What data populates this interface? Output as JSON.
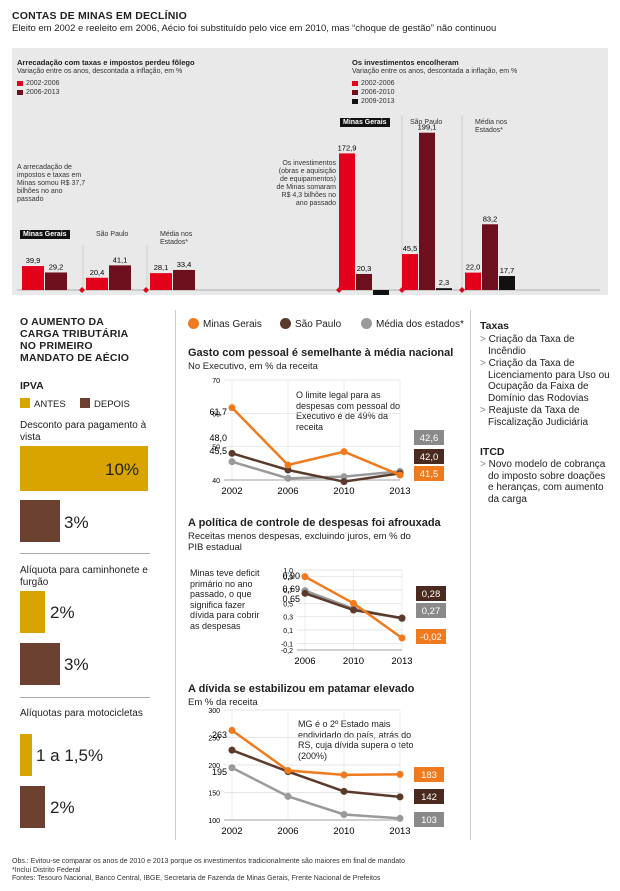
{
  "header": {
    "title": "CONTAS DE MINAS EM DECLÍNIO",
    "subtitle": "Eleito em 2002 e reeleito em 2006, Aécio foi substituído pelo vice em 2010, mas “choque de gestão” não continuou"
  },
  "colors": {
    "red": "#e3001b",
    "darkred": "#6e0f1e",
    "maroon": "#3a0d12",
    "black": "#111111",
    "orange": "#f07b1f",
    "brown": "#5a3a2a",
    "gray": "#9a9a9a",
    "gold": "#d9a400",
    "chocolate": "#6b4030"
  },
  "top_left": {
    "title": "Arrecadação com taxas e impostos perdeu fôlego",
    "subtitle": "Variação entre os anos, descontada a inflação, em %",
    "legend": [
      "2002-2006",
      "2006-2013"
    ],
    "annotation": "A arrecadação de impostos e taxas em Minas somou R$ 37,7 bilhões no ano passado",
    "groups": [
      {
        "label": "Minas Gerais",
        "tag": true,
        "values": [
          "39,9",
          "29,2"
        ]
      },
      {
        "label": "São Paulo",
        "tag": false,
        "values": [
          "20,4",
          "41,1"
        ]
      },
      {
        "label": "Média nos Estados*",
        "tag": false,
        "values": [
          "28,1",
          "33,4"
        ]
      }
    ]
  },
  "top_right": {
    "title": "Os investimentos encolheram",
    "subtitle": "Variação entre os anos, descontada a inflação, em %",
    "legend": [
      "2002-2006",
      "2006-2010",
      "2009-2013"
    ],
    "annotation": "Os investimentos (obras e aquisição de equipamentos) de Minas somaram R$ 4,3 bilhões no ano passado",
    "groups": [
      {
        "label": "Minas Gerais",
        "tag": true,
        "values": [
          "172,9",
          "20,3",
          ""
        ]
      },
      {
        "label": "São Paulo",
        "tag": false,
        "values": [
          "45,5",
          "199,1",
          "2,3"
        ]
      },
      {
        "label": "Média nos Estados*",
        "tag": false,
        "values": [
          "22,0",
          "83,2",
          "17,7"
        ]
      }
    ]
  },
  "left": {
    "heading": "O AUMENTO DA CARGA TRIBUTÁRIA NO PRIMEIRO MANDATO DE AÉCIO",
    "ipva": "IPVA",
    "legend": [
      "ANTES",
      "DEPOIS"
    ],
    "items": [
      {
        "label": "Desconto para pagamento à vista",
        "before": "10%",
        "after": "3%"
      },
      {
        "label": "Alíquota para caminhonete e furgão",
        "before": "2%",
        "after": "3%"
      },
      {
        "label": "Alíquotas para motocicletas",
        "before": "1 a 1,5%",
        "after": "2%"
      }
    ]
  },
  "mid_legend": [
    "Minas Gerais",
    "São Paulo",
    "Média dos estados*"
  ],
  "chart_data": [
    {
      "type": "line",
      "title": "Gasto com pessoal é semelhante à média nacional",
      "subtitle": "No Executivo, em % da receita",
      "x": [
        "2002",
        "2006",
        "2010",
        "2013"
      ],
      "ylim": [
        40,
        70
      ],
      "yticks": [
        "70",
        "60",
        "50",
        "40"
      ],
      "series": [
        {
          "name": "Minas Gerais",
          "values": [
            61.7,
            44.5,
            48.5,
            41.5
          ]
        },
        {
          "name": "São Paulo",
          "values": [
            48.0,
            43.0,
            39.5,
            42.0
          ]
        },
        {
          "name": "Média dos estados*",
          "values": [
            45.5,
            40.5,
            41.0,
            42.6
          ]
        }
      ],
      "labels_left": [
        "61,7",
        "48,0",
        "45,5"
      ],
      "labels_right": [
        "42,6",
        "42,0",
        "41,5"
      ],
      "note": "O limite legal para as despesas com pessoal do Executivo é de 49% da receita"
    },
    {
      "type": "line",
      "title": "A política de controle de despesas foi afrouxada",
      "subtitle": "Receitas menos despesas, excluindo juros, em % do PIB estadual",
      "x": [
        "2006",
        "2010",
        "2013"
      ],
      "ylim": [
        -0.2,
        1.0
      ],
      "yticks": [
        "1,0",
        "0,9",
        "0,7",
        "0,5",
        "0,3",
        "0,1",
        "-0,1",
        "-0,2"
      ],
      "series": [
        {
          "name": "Minas Gerais",
          "values": [
            0.9,
            0.5,
            -0.02
          ]
        },
        {
          "name": "São Paulo",
          "values": [
            0.65,
            0.4,
            0.28
          ]
        },
        {
          "name": "Média dos estados*",
          "values": [
            0.69,
            0.42,
            0.27
          ]
        }
      ],
      "labels_left": [
        "0,90",
        "0,69",
        "0,65"
      ],
      "labels_right": [
        "0,28",
        "0,27",
        "-0,02"
      ],
      "note": "Minas teve deficit primário no ano passado, o que significa fazer dívida para cobrir as despesas"
    },
    {
      "type": "line",
      "title": "A dívida se estabilizou em patamar elevado",
      "subtitle": "Em % da receita",
      "x": [
        "2002",
        "2006",
        "2010",
        "2013"
      ],
      "ylim": [
        100,
        300
      ],
      "yticks": [
        "300",
        "250",
        "200",
        "150",
        "100"
      ],
      "series": [
        {
          "name": "Minas Gerais",
          "values": [
            263,
            190,
            182,
            183
          ]
        },
        {
          "name": "São Paulo",
          "values": [
            227,
            188,
            152,
            142
          ]
        },
        {
          "name": "Média dos estados*",
          "values": [
            195,
            143,
            110,
            103
          ]
        }
      ],
      "labels_left": [
        "263",
        "195"
      ],
      "labels_right": [
        "183",
        "142",
        "103"
      ],
      "note": "MG é o 2º Estado mais endividado do país, atrás do RS, cuja dívida supera o teto (200%)"
    }
  ],
  "right": {
    "taxas_title": "Taxas",
    "taxas": [
      "Criação da Taxa de Incêndio",
      "Criação da Taxa de Licenciamento para Uso ou Ocupação da Faixa de Domínio das Rodovias",
      "Reajuste da Taxa de Fiscalização Judiciária"
    ],
    "itcd_title": "ITCD",
    "itcd": [
      "Novo modelo de cobrança do imposto sobre doações e heranças, com aumento da carga"
    ]
  },
  "footer": {
    "obs": "Obs.: Evitou-se comparar os anos de 2010 e 2013 porque os investimentos tradicionalmente são maiores em final de mandato",
    "star": "*Inclui Distrito Federal",
    "fontes": "Fontes: Tesouro Nacional, Banco Central, IBGE, Secretaria de Fazenda de Minas Gerais, Frente Nacional de Prefeitos"
  }
}
